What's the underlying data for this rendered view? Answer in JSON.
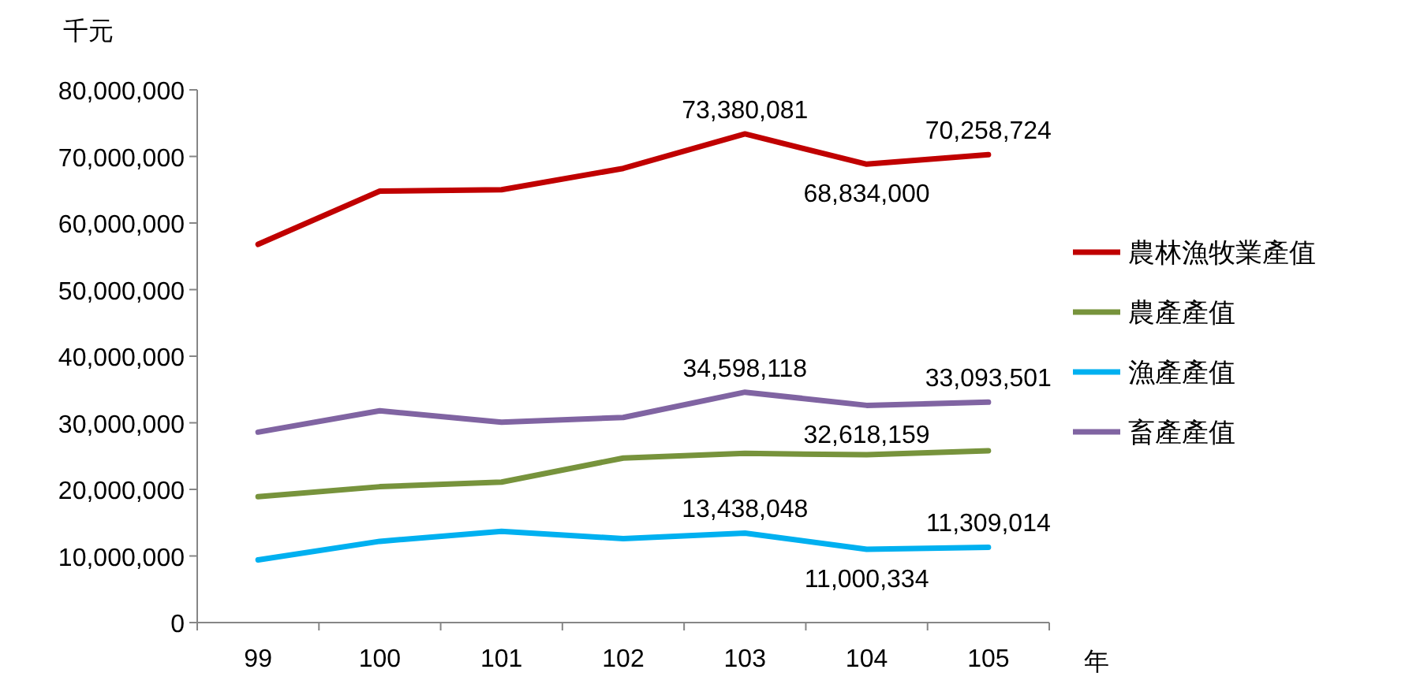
{
  "chart_data": {
    "type": "line",
    "ylabel": "千元",
    "xlabel": "年",
    "categories": [
      "99",
      "100",
      "101",
      "102",
      "103",
      "104",
      "105"
    ],
    "ylim": [
      0,
      80000000
    ],
    "yticks": [
      {
        "value": 0,
        "label": "0"
      },
      {
        "value": 10000000,
        "label": "10,000,000"
      },
      {
        "value": 20000000,
        "label": "20,000,000"
      },
      {
        "value": 30000000,
        "label": "30,000,000"
      },
      {
        "value": 40000000,
        "label": "40,000,000"
      },
      {
        "value": 50000000,
        "label": "50,000,000"
      },
      {
        "value": 60000000,
        "label": "60,000,000"
      },
      {
        "value": 70000000,
        "label": "70,000,000"
      },
      {
        "value": 80000000,
        "label": "80,000,000"
      }
    ],
    "grid": false,
    "legend": "right",
    "marker": "none",
    "line_style": "solid",
    "series": [
      {
        "name": "農林漁牧業產值",
        "color": "#c00000",
        "values": [
          56800000,
          64800000,
          65000000,
          68200000,
          73380081,
          68834000,
          70258724
        ],
        "value_labels": [
          null,
          null,
          null,
          null,
          "73,380,081",
          "68,834,000",
          "70,258,724"
        ]
      },
      {
        "name": "農產產值",
        "color": "#77933c",
        "values": [
          18900000,
          20400000,
          21100000,
          24700000,
          25400000,
          25200000,
          25800000
        ]
      },
      {
        "name": "漁產產值",
        "color": "#00b0f0",
        "values": [
          9400000,
          12200000,
          13700000,
          12600000,
          13438048,
          11000334,
          11309014
        ],
        "value_labels": [
          null,
          null,
          null,
          null,
          "13,438,048",
          "11,000,334",
          "11,309,014"
        ]
      },
      {
        "name": "畜產產值",
        "color": "#8064a2",
        "values": [
          28600000,
          31800000,
          30100000,
          30800000,
          34598118,
          32618159,
          33093501
        ],
        "value_labels": [
          null,
          null,
          null,
          null,
          "34,598,118",
          "32,618,159",
          "33,093,501"
        ]
      }
    ]
  }
}
